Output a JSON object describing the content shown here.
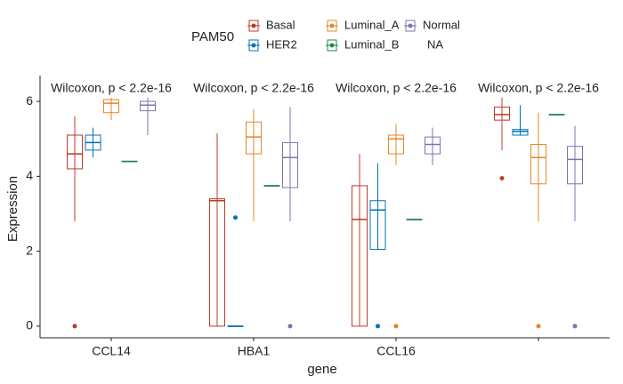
{
  "chart_data": {
    "type": "box",
    "legend": {
      "title": "PAM50",
      "na_label": "NA"
    },
    "annotations": [
      "Wilcoxon, p < 2.2e-16",
      "Wilcoxon, p < 2.2e-16",
      "Wilcoxon, p < 2.2e-16",
      "Wilcoxon, p < 2.2e-16"
    ],
    "xlabel": "gene",
    "ylabel": "Expression",
    "categories": [
      "CCL14",
      "HBA1",
      "CCL16",
      null
    ],
    "ylim": [
      -0.31,
      6.69
    ],
    "yticks": [
      0,
      2,
      4,
      6
    ],
    "series": [
      {
        "name": "Basal",
        "color": "#bc3c29",
        "values": [
          {
            "low": 2.8,
            "q1": 4.2,
            "median": 4.6,
            "q3": 5.1,
            "high": 5.6,
            "outliers": [
              0
            ]
          },
          {
            "low": 0,
            "q1": 0,
            "median": 3.35,
            "q3": 3.4,
            "high": 5.15,
            "outliers": []
          },
          {
            "low": 0,
            "q1": 0,
            "median": 2.85,
            "q3": 3.75,
            "high": 4.6,
            "outliers": []
          },
          {
            "low": 4.7,
            "q1": 5.5,
            "median": 5.65,
            "q3": 5.85,
            "high": 6.1,
            "outliers": [
              3.95
            ]
          }
        ]
      },
      {
        "name": "HER2",
        "color": "#0072b5",
        "values": [
          {
            "low": 4.5,
            "q1": 4.7,
            "median": 4.9,
            "q3": 5.1,
            "high": 5.3,
            "outliers": []
          },
          {
            "low": 0,
            "q1": 0,
            "median": 0,
            "q3": 0,
            "high": 0,
            "outliers": [
              2.9
            ]
          },
          {
            "low": 2.05,
            "q1": 2.05,
            "median": 3.1,
            "q3": 3.35,
            "high": 4.35,
            "outliers": [
              0
            ]
          },
          {
            "low": 5.1,
            "q1": 5.1,
            "median": 5.2,
            "q3": 5.25,
            "high": 5.9,
            "outliers": []
          }
        ]
      },
      {
        "name": "Luminal_A",
        "color": "#e18727",
        "values": [
          {
            "low": 5.5,
            "q1": 5.7,
            "median": 5.95,
            "q3": 6.05,
            "high": 6.1,
            "outliers": []
          },
          {
            "low": 2.8,
            "q1": 4.6,
            "median": 5.05,
            "q3": 5.45,
            "high": 5.8,
            "outliers": []
          },
          {
            "low": 4.3,
            "q1": 4.6,
            "median": 5.0,
            "q3": 5.1,
            "high": 5.4,
            "outliers": [
              0
            ]
          },
          {
            "low": 2.8,
            "q1": 3.8,
            "median": 4.5,
            "q3": 4.85,
            "high": 5.7,
            "outliers": [
              0
            ]
          }
        ]
      },
      {
        "name": "Luminal_B",
        "color": "#20854e",
        "values": [
          {
            "low": 4.4,
            "q1": 4.4,
            "median": 4.4,
            "q3": 4.4,
            "high": 4.4,
            "outliers": []
          },
          {
            "low": 3.75,
            "q1": 3.75,
            "median": 3.75,
            "q3": 3.75,
            "high": 3.75,
            "outliers": []
          },
          {
            "low": 2.85,
            "q1": 2.85,
            "median": 2.85,
            "q3": 2.85,
            "high": 2.85,
            "outliers": []
          },
          {
            "low": 5.65,
            "q1": 5.65,
            "median": 5.65,
            "q3": 5.65,
            "high": 5.65,
            "outliers": []
          }
        ]
      },
      {
        "name": "Normal",
        "color": "#7876b1",
        "values": [
          {
            "low": 5.1,
            "q1": 5.75,
            "median": 5.9,
            "q3": 6.0,
            "high": 6.1,
            "outliers": []
          },
          {
            "low": 2.8,
            "q1": 3.7,
            "median": 4.5,
            "q3": 4.9,
            "high": 5.85,
            "outliers": [
              0
            ]
          },
          {
            "low": 4.3,
            "q1": 4.6,
            "median": 4.85,
            "q3": 5.05,
            "high": 5.3,
            "outliers": []
          },
          {
            "low": 2.8,
            "q1": 3.8,
            "median": 4.45,
            "q3": 4.8,
            "high": 5.35,
            "outliers": [
              0
            ]
          }
        ]
      }
    ]
  }
}
